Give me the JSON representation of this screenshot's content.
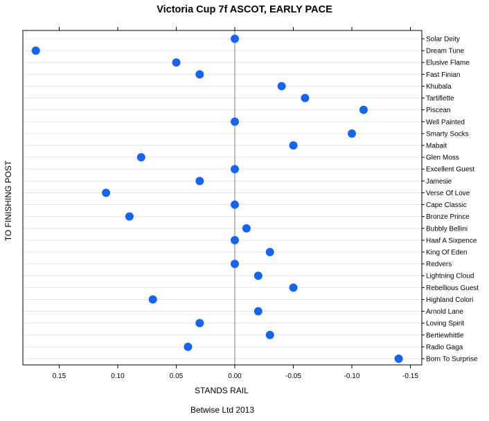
{
  "chart_data": {
    "type": "scatter",
    "title": "Victoria Cup 7f ASCOT, EARLY PACE",
    "xlabel": "STANDS RAIL",
    "ylabel": "TO FINISHING POST",
    "footer": "Betwise Ltd 2013",
    "x_reversed": true,
    "xlim": [
      0.18,
      -0.16
    ],
    "xticks": [
      0.15,
      0.1,
      0.05,
      0.0,
      -0.05,
      -0.1,
      -0.15
    ],
    "xtick_labels": [
      "0.15",
      "0.10",
      "0.05",
      "0.00",
      "-0.05",
      "-0.10",
      "-0.15"
    ],
    "reference_line_x": 0.0,
    "grid": "horizontal",
    "point_color": "#1565f5",
    "categories": [
      "Solar Deity",
      "Dream Tune",
      "Elusive Flame",
      "Fast Finian",
      "Khubala",
      "Tartiflette",
      "Piscean",
      "Well Painted",
      "Smarty Socks",
      "Mabait",
      "Glen Moss",
      "Excellent Guest",
      "Jamesie",
      "Verse Of Love",
      "Cape Classic",
      "Bronze Prince",
      "Bubbly Bellini",
      "Haaf A Sixpence",
      "King Of Eden",
      "Redvers",
      "Lightning Cloud",
      "Rebellious Guest",
      "Highland Colori",
      "Arnold Lane",
      "Loving Spirit",
      "Bertiewhittle",
      "Radio Gaga",
      "Born To Surprise"
    ],
    "values": [
      0.0,
      0.17,
      0.05,
      0.03,
      -0.04,
      -0.06,
      -0.11,
      0.0,
      -0.1,
      -0.05,
      0.08,
      0.0,
      0.03,
      0.11,
      0.0,
      0.09,
      -0.01,
      0.0,
      -0.03,
      0.0,
      -0.02,
      -0.05,
      0.07,
      -0.02,
      0.03,
      -0.03,
      0.04,
      -0.14
    ]
  }
}
